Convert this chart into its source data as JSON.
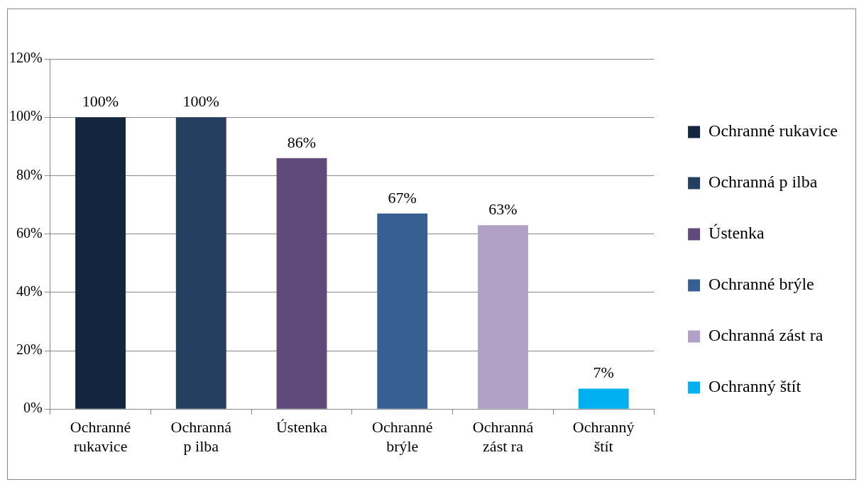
{
  "chart_data": {
    "type": "bar",
    "categories": [
      "Ochranné rukavice",
      "Ochranná p ilba",
      "Ústenka",
      "Ochranné brýle",
      "Ochranná zást ra",
      "Ochranný štít"
    ],
    "series": [
      {
        "name": "Ochranné rukavice",
        "color": "#12263f",
        "values": [
          100,
          null,
          null,
          null,
          null,
          null
        ],
        "value_labels": [
          "100%",
          null,
          null,
          null,
          null,
          null
        ]
      },
      {
        "name": "Ochranná p ilba",
        "color": "#243f60",
        "values": [
          null,
          100,
          null,
          null,
          null,
          null
        ],
        "value_labels": [
          null,
          "100%",
          null,
          null,
          null,
          null
        ]
      },
      {
        "name": "Ústenka",
        "color": "#604a7b",
        "values": [
          null,
          null,
          86,
          null,
          null,
          null
        ],
        "value_labels": [
          null,
          null,
          "86%",
          null,
          null,
          null
        ]
      },
      {
        "name": "Ochranné brýle",
        "color": "#366092",
        "values": [
          null,
          null,
          null,
          67,
          null,
          null
        ],
        "value_labels": [
          null,
          null,
          null,
          "67%",
          null,
          null
        ]
      },
      {
        "name": "Ochranná zást ra",
        "color": "#b2a1c7",
        "values": [
          null,
          null,
          null,
          null,
          63,
          null
        ],
        "value_labels": [
          null,
          null,
          null,
          null,
          "63%",
          null
        ]
      },
      {
        "name": "Ochranný štít",
        "color": "#00b0f0",
        "values": [
          null,
          null,
          null,
          null,
          null,
          7
        ],
        "value_labels": [
          null,
          null,
          null,
          null,
          null,
          "7%"
        ]
      }
    ],
    "ylim": [
      0,
      120
    ],
    "yticks": [
      {
        "value": 0,
        "label": "0%"
      },
      {
        "value": 20,
        "label": "20%"
      },
      {
        "value": 40,
        "label": "40%"
      },
      {
        "value": 60,
        "label": "60%"
      },
      {
        "value": 80,
        "label": "80%"
      },
      {
        "value": 100,
        "label": "100%"
      },
      {
        "value": 120,
        "label": "120%"
      }
    ],
    "grid": "y",
    "legend": "right"
  }
}
